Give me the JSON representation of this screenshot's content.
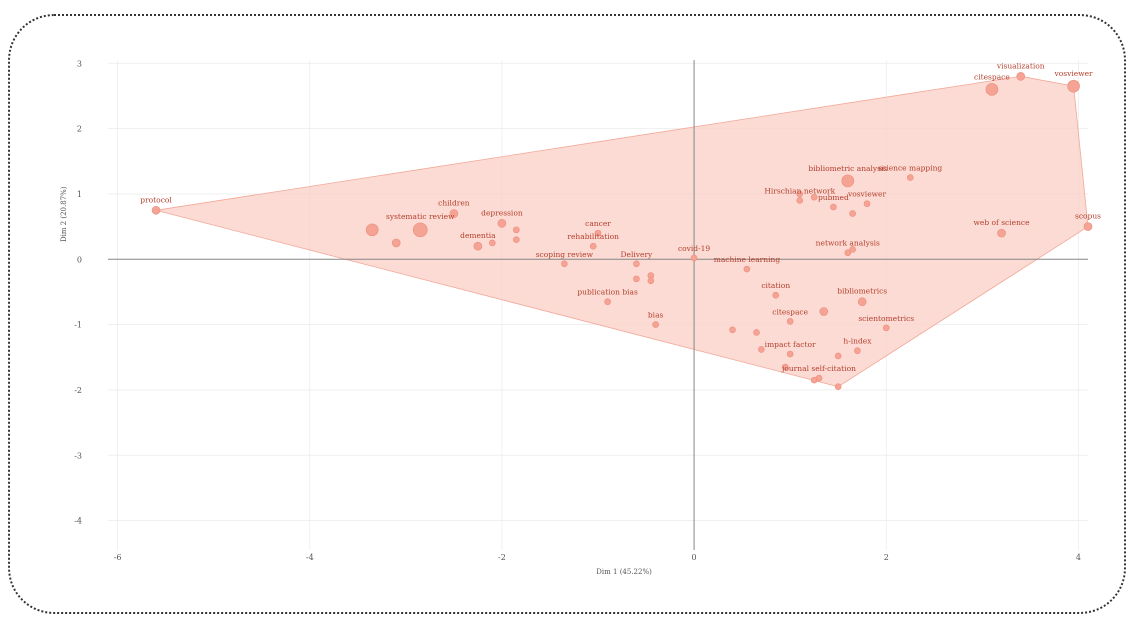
{
  "chart_data": {
    "type": "scatter",
    "xlabel": "Dim 1 (45.22%)",
    "ylabel": "Dim 2 (20.87%)",
    "xlim": [
      -6.1,
      4.1
    ],
    "ylim": [
      -4.45,
      3.05
    ],
    "xticks": [
      -6,
      -4,
      -2,
      0,
      2,
      4
    ],
    "yticks": [
      -4,
      -3,
      -2,
      -1,
      0,
      1,
      2,
      3
    ],
    "grid": true,
    "hull_color": "#f9cfc6",
    "point_color": "#f4a394",
    "label_color": "#b4402e",
    "points": [
      {
        "label": "protocol",
        "x": -5.6,
        "y": 0.75,
        "size": 4
      },
      {
        "label": "children",
        "x": -2.5,
        "y": 0.7,
        "size": 4
      },
      {
        "label": "systematic review",
        "x": -2.85,
        "y": 0.45,
        "size": 7
      },
      {
        "label": "depression",
        "x": -2.0,
        "y": 0.55,
        "size": 4
      },
      {
        "label": "dementia",
        "x": -2.25,
        "y": 0.2,
        "size": 4
      },
      {
        "label": "cancer",
        "x": -1.0,
        "y": 0.4,
        "size": 3
      },
      {
        "label": "rehabilitation",
        "x": -1.05,
        "y": 0.2,
        "size": 3
      },
      {
        "label": "scoping review",
        "x": -1.35,
        "y": -0.07,
        "size": 3
      },
      {
        "label": "Delivery",
        "x": -0.6,
        "y": -0.07,
        "size": 3
      },
      {
        "label": "covid-19",
        "x": 0.0,
        "y": 0.02,
        "size": 3
      },
      {
        "label": "machine learning",
        "x": 0.55,
        "y": -0.15,
        "size": 3
      },
      {
        "label": "publication bias",
        "x": -0.9,
        "y": -0.65,
        "size": 3
      },
      {
        "label": "bias",
        "x": -0.4,
        "y": -1.0,
        "size": 3
      },
      {
        "label": "citation",
        "x": 0.85,
        "y": -0.55,
        "size": 3
      },
      {
        "label": "bibliometrics",
        "x": 1.75,
        "y": -0.65,
        "size": 4
      },
      {
        "label": "scientometrics",
        "x": 2.0,
        "y": -1.05,
        "size": 3
      },
      {
        "label": "citespace",
        "x": 1.0,
        "y": -0.95,
        "size": 3
      },
      {
        "label": "impact factor",
        "x": 1.0,
        "y": -1.45,
        "size": 3
      },
      {
        "label": "h-index",
        "x": 1.7,
        "y": -1.4,
        "size": 3
      },
      {
        "label": "journal self-citation",
        "x": 1.3,
        "y": -1.82,
        "size": 3
      },
      {
        "label": "bibliometric analysis",
        "x": 1.6,
        "y": 1.2,
        "size": 6
      },
      {
        "label": "science mapping",
        "x": 2.25,
        "y": 1.25,
        "size": 3
      },
      {
        "label": "Hirschian network",
        "x": 1.1,
        "y": 0.9,
        "size": 3
      },
      {
        "label": "vosviewer",
        "x": 1.8,
        "y": 0.85,
        "size": 3
      },
      {
        "label": "pubmed",
        "x": 1.45,
        "y": 0.8,
        "size": 3
      },
      {
        "label": "network analysis",
        "x": 1.6,
        "y": 0.1,
        "size": 3
      },
      {
        "label": "web of science",
        "x": 3.2,
        "y": 0.4,
        "size": 4
      },
      {
        "label": "scopus",
        "x": 4.1,
        "y": 0.5,
        "size": 4
      },
      {
        "label": "citespace",
        "x": 3.1,
        "y": 2.6,
        "size": 6
      },
      {
        "label": "visualization",
        "x": 3.4,
        "y": 2.8,
        "size": 4
      },
      {
        "label": "vosviewer",
        "x": 3.95,
        "y": 2.65,
        "size": 6
      }
    ],
    "extra_points": [
      {
        "x": -3.35,
        "y": 0.45,
        "size": 6
      },
      {
        "x": -3.1,
        "y": 0.25,
        "size": 4
      },
      {
        "x": -2.1,
        "y": 0.25,
        "size": 3
      },
      {
        "x": -1.85,
        "y": 0.45,
        "size": 3
      },
      {
        "x": -1.85,
        "y": 0.3,
        "size": 3
      },
      {
        "x": -0.45,
        "y": -0.25,
        "size": 3
      },
      {
        "x": -0.45,
        "y": -0.33,
        "size": 3
      },
      {
        "x": -0.6,
        "y": -0.3,
        "size": 3
      },
      {
        "x": 1.1,
        "y": 1.0,
        "size": 3
      },
      {
        "x": 1.25,
        "y": 0.95,
        "size": 3
      },
      {
        "x": 1.65,
        "y": 0.7,
        "size": 3
      },
      {
        "x": 1.65,
        "y": 0.15,
        "size": 3
      },
      {
        "x": 1.35,
        "y": -0.8,
        "size": 4
      },
      {
        "x": 0.4,
        "y": -1.08,
        "size": 3
      },
      {
        "x": 0.65,
        "y": -1.12,
        "size": 3
      },
      {
        "x": 0.7,
        "y": -1.38,
        "size": 3
      },
      {
        "x": 1.5,
        "y": -1.48,
        "size": 3
      },
      {
        "x": 0.95,
        "y": -1.65,
        "size": 3
      },
      {
        "x": 1.25,
        "y": -1.85,
        "size": 3
      },
      {
        "x": 1.5,
        "y": -1.95,
        "size": 3
      }
    ]
  }
}
